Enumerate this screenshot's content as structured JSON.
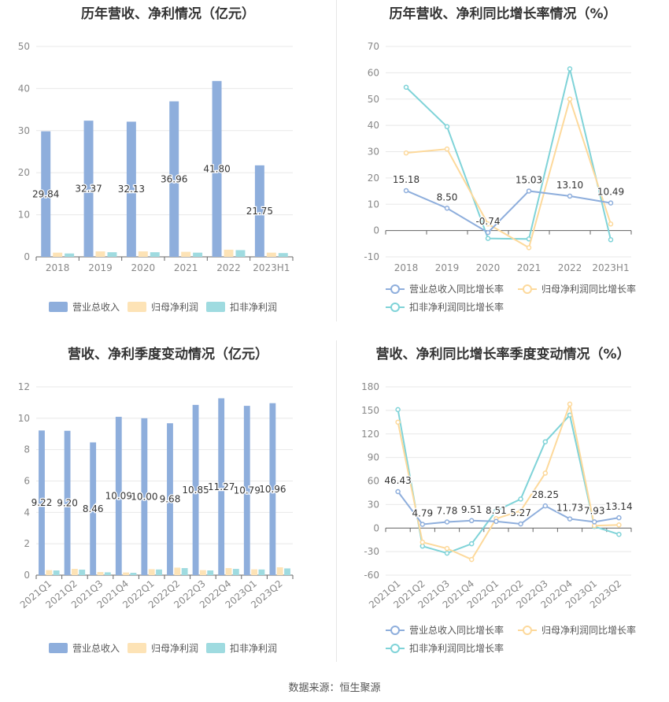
{
  "source": "数据来源：恒生聚源",
  "chart_data": [
    {
      "type": "bar",
      "title": "历年营收、净利情况（亿元）",
      "categories": [
        "2018",
        "2019",
        "2020",
        "2021",
        "2022",
        "2023H1"
      ],
      "ylim": [
        0,
        50
      ],
      "yticks": [
        "0",
        "10",
        "20",
        "30",
        "40",
        "50"
      ],
      "grid": true,
      "legend": "bottom",
      "series": [
        {
          "name": "营业总收入",
          "color": "#8eaedc",
          "values": [
            29.84,
            32.37,
            32.13,
            36.96,
            41.8,
            21.75
          ],
          "labels": [
            "29.84",
            "32.37",
            "32.13",
            "36.96",
            "41.80",
            "21.75"
          ]
        },
        {
          "name": "归母净利润",
          "color": "#fde3b6",
          "values": [
            1.0,
            1.3,
            1.3,
            1.2,
            1.7,
            1.0
          ]
        },
        {
          "name": "扣非净利润",
          "color": "#9fdbe0",
          "values": [
            0.8,
            1.1,
            1.1,
            1.0,
            1.6,
            0.9
          ]
        }
      ]
    },
    {
      "type": "line",
      "title": "历年营收、净利同比增长率情况（%）",
      "categories": [
        "2018",
        "2019",
        "2020",
        "2021",
        "2022",
        "2023H1"
      ],
      "ylim": [
        -10,
        70
      ],
      "yticks": [
        "-10",
        "0",
        "10",
        "20",
        "30",
        "40",
        "50",
        "60",
        "70"
      ],
      "grid": true,
      "legend": "bottom",
      "series": [
        {
          "name": "营业总收入同比增长率",
          "color": "#8eaedc",
          "values": [
            15.18,
            8.5,
            -0.74,
            15.03,
            13.1,
            10.49
          ],
          "labels": [
            "15.18",
            "8.50",
            "-0.74",
            "15.03",
            "13.10",
            "10.49"
          ]
        },
        {
          "name": "归母净利润同比增长率",
          "color": "#fdd99b",
          "values": [
            29.5,
            31,
            2.5,
            -6.5,
            50,
            2.5
          ]
        },
        {
          "name": "扣非净利润同比增长率",
          "color": "#7fd3d8",
          "values": [
            54.5,
            39.5,
            -3,
            -3.2,
            61.5,
            -3.5
          ]
        }
      ]
    },
    {
      "type": "bar",
      "title": "营收、净利季度变动情况（亿元）",
      "categories": [
        "2021Q1",
        "2021Q2",
        "2021Q3",
        "2021Q4",
        "2022Q1",
        "2022Q2",
        "2022Q3",
        "2022Q4",
        "2023Q1",
        "2023Q2"
      ],
      "ylim": [
        0,
        12
      ],
      "yticks": [
        "0",
        "2",
        "4",
        "6",
        "8",
        "10",
        "12"
      ],
      "grid": true,
      "legend": "bottom",
      "series": [
        {
          "name": "营业总收入",
          "color": "#8eaedc",
          "values": [
            9.22,
            9.2,
            8.46,
            10.09,
            10.0,
            9.68,
            10.85,
            11.27,
            10.79,
            10.96
          ],
          "labels": [
            "9.22",
            "9.20",
            "8.46",
            "10.09",
            "10.00",
            "9.68",
            "10.85",
            "11.27",
            "10.79",
            "10.96"
          ]
        },
        {
          "name": "归母净利润",
          "color": "#fde3b6",
          "values": [
            0.32,
            0.4,
            0.2,
            0.17,
            0.38,
            0.48,
            0.32,
            0.45,
            0.37,
            0.5
          ]
        },
        {
          "name": "扣非净利润",
          "color": "#9fdbe0",
          "values": [
            0.3,
            0.35,
            0.18,
            0.15,
            0.36,
            0.45,
            0.3,
            0.4,
            0.36,
            0.43
          ]
        }
      ]
    },
    {
      "type": "line",
      "title": "营收、净利同比增长率季度变动情况（%）",
      "categories": [
        "2021Q1",
        "2021Q2",
        "2021Q3",
        "2021Q4",
        "2022Q1",
        "2022Q2",
        "2022Q3",
        "2022Q4",
        "2023Q1",
        "2023Q2"
      ],
      "ylim": [
        -60,
        180
      ],
      "yticks": [
        "-60",
        "-30",
        "0",
        "30",
        "60",
        "90",
        "120",
        "150",
        "180"
      ],
      "grid": true,
      "legend": "bottom",
      "series": [
        {
          "name": "营业总收入同比增长率",
          "color": "#8eaedc",
          "values": [
            46.43,
            4.79,
            7.78,
            9.51,
            8.51,
            5.27,
            28.25,
            11.73,
            7.93,
            13.14
          ],
          "labels": [
            "46.43",
            "4.79",
            "7.78",
            "9.51",
            "8.51",
            "5.27",
            "28.25",
            "11.73",
            "7.93",
            "13.14"
          ]
        },
        {
          "name": "归母净利润同比增长率",
          "color": "#fdd99b",
          "values": [
            135,
            -18,
            -26,
            -40,
            12,
            22,
            70,
            158,
            3,
            4
          ]
        },
        {
          "name": "扣非净利润同比增长率",
          "color": "#7fd3d8",
          "values": [
            151,
            -23,
            -32,
            -20,
            22,
            37,
            110,
            144,
            2,
            -8
          ]
        }
      ]
    }
  ]
}
